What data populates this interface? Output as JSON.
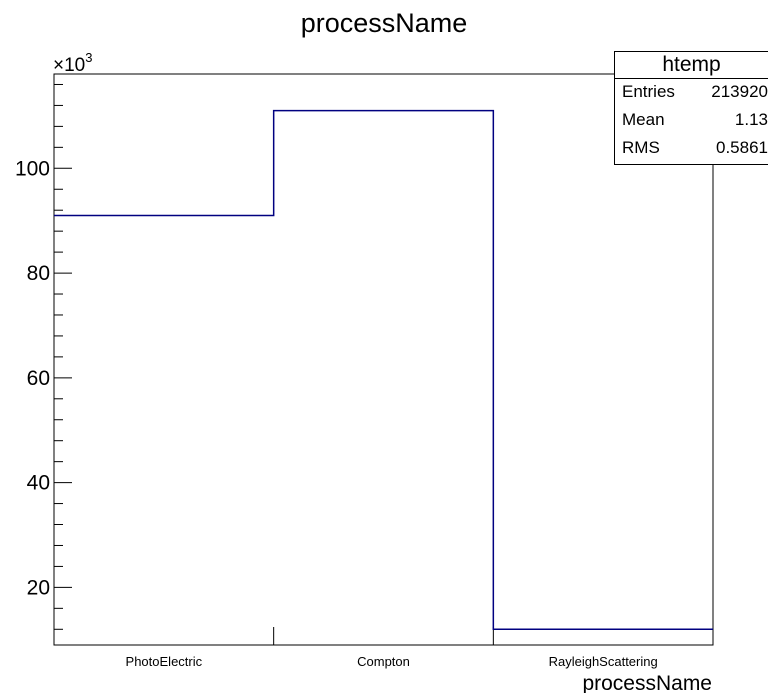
{
  "chart_data": {
    "type": "bar",
    "style": "histogram-step",
    "title": "processName",
    "xlabel": "processName",
    "ylabel": "",
    "y_multiplier_label": "×10",
    "y_multiplier_exponent": "3",
    "categories": [
      "PhotoElectric",
      "Compton",
      "RayleighScattering"
    ],
    "values": [
      91,
      111,
      12
    ],
    "ylim": [
      9,
      118
    ],
    "yticks": [
      20,
      40,
      60,
      80,
      100
    ],
    "line_color": "#000080",
    "grid": false,
    "stats": {
      "name": "htemp",
      "rows": [
        {
          "label": "Entries",
          "value": "213920"
        },
        {
          "label": "Mean",
          "value": "1.13"
        },
        {
          "label": "RMS",
          "value": "0.5861"
        }
      ]
    }
  }
}
